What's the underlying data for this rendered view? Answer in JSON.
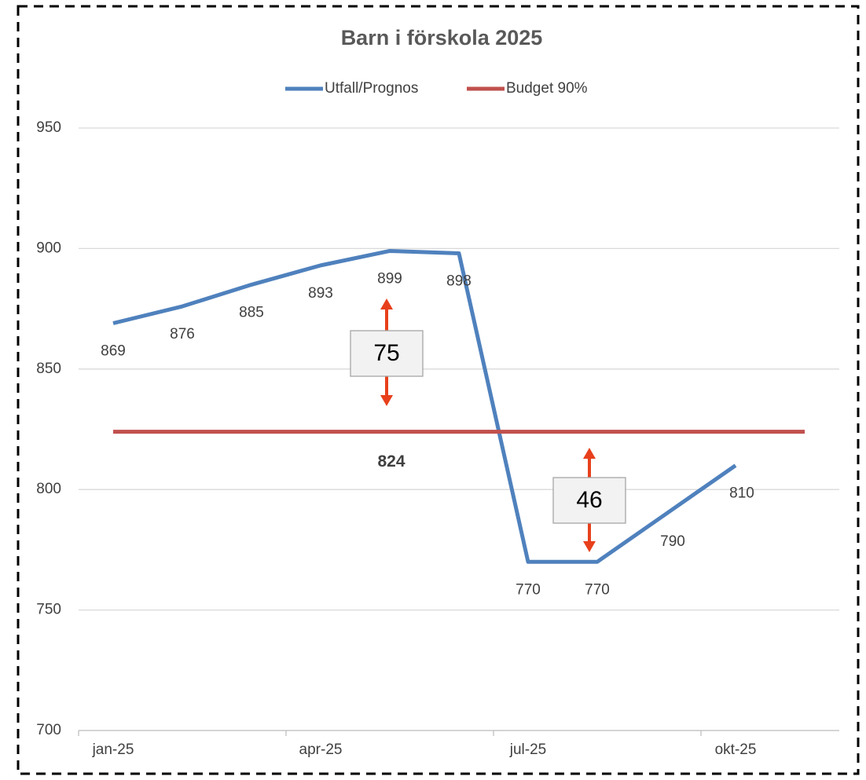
{
  "chart_data": {
    "type": "line",
    "title": "Barn i förskola 2025",
    "categories": [
      "jan-25",
      null,
      null,
      "apr-25",
      null,
      null,
      "jul-25",
      null,
      null,
      "okt-25",
      null
    ],
    "series": [
      {
        "name": "Utfall/Prognos",
        "color": "#4f81bd",
        "values": [
          869,
          876,
          885,
          893,
          899,
          898,
          770,
          770,
          790,
          810,
          null
        ]
      },
      {
        "name": "Budget 90%",
        "color": "#c0504d",
        "values": [
          824,
          824,
          824,
          824,
          824,
          824,
          824,
          824,
          824,
          824,
          824
        ]
      }
    ],
    "annotations": [
      "75",
      "46"
    ],
    "ylim": [
      700,
      950
    ],
    "yticks": [
      700,
      750,
      800,
      850,
      900,
      950
    ],
    "grid": true,
    "legend": "top"
  }
}
